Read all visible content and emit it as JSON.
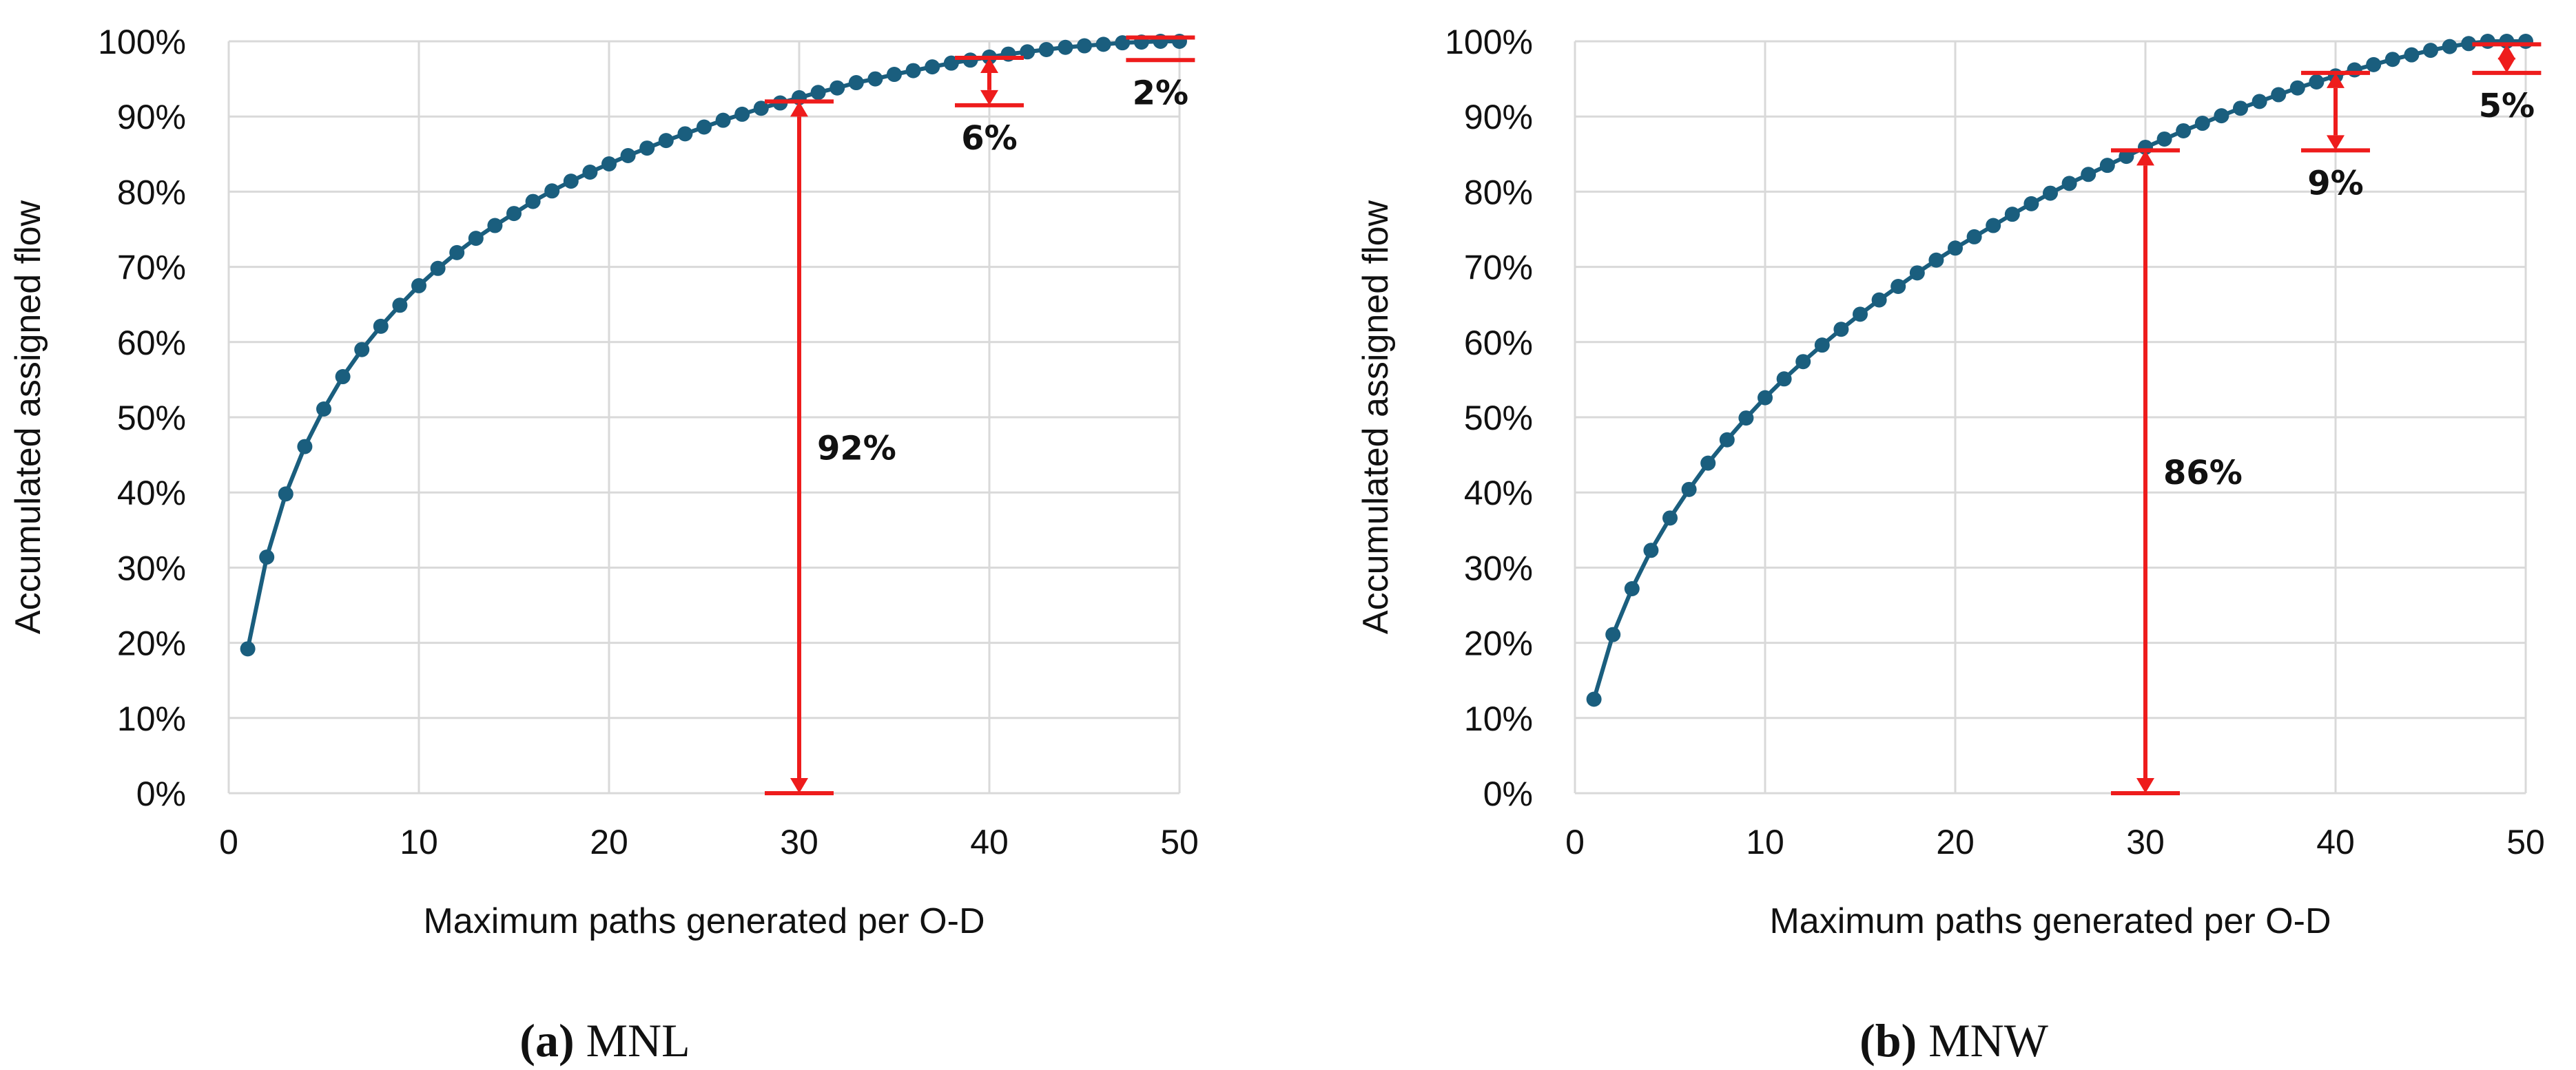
{
  "colors": {
    "series": "#1a5e7e",
    "annotation": "#ee1c1c",
    "grid": "#d9d9d9"
  },
  "chart_data": [
    {
      "id": "a",
      "type": "line",
      "caption_label": "(a)",
      "caption_text": "MNL",
      "xlabel": "Maximum paths generated per O-D",
      "ylabel": "Accumulated assigned flow",
      "xlim": [
        0,
        50
      ],
      "ylim": [
        0,
        100
      ],
      "xticks": [
        0,
        10,
        20,
        30,
        40,
        50
      ],
      "yticks": [
        0,
        10,
        20,
        30,
        40,
        50,
        60,
        70,
        80,
        90,
        100
      ],
      "ytick_suffix": "%",
      "x": [
        1,
        2,
        3,
        4,
        5,
        6,
        7,
        8,
        9,
        10,
        11,
        12,
        13,
        14,
        15,
        16,
        17,
        18,
        19,
        20,
        21,
        22,
        23,
        24,
        25,
        26,
        27,
        28,
        29,
        30,
        31,
        32,
        33,
        34,
        35,
        36,
        37,
        38,
        39,
        40,
        41,
        42,
        43,
        44,
        45,
        46,
        47,
        48,
        49,
        50
      ],
      "y": [
        19.2,
        31.4,
        39.8,
        46.1,
        51.1,
        55.4,
        59.0,
        62.1,
        64.9,
        67.5,
        69.8,
        71.9,
        73.8,
        75.5,
        77.1,
        78.7,
        80.1,
        81.4,
        82.6,
        83.7,
        84.8,
        85.8,
        86.8,
        87.7,
        88.6,
        89.5,
        90.3,
        91.1,
        91.8,
        92.5,
        93.2,
        93.8,
        94.5,
        95.0,
        95.6,
        96.1,
        96.6,
        97.1,
        97.5,
        97.9,
        98.3,
        98.6,
        98.9,
        99.2,
        99.4,
        99.6,
        99.8,
        99.9,
        100.0,
        100.0
      ],
      "annotations": [
        {
          "x": 30,
          "from": 0,
          "to": 92,
          "label": "92%",
          "label_pos": "right"
        },
        {
          "x": 40,
          "from": 91.5,
          "to": 97.8,
          "label": "6%",
          "label_pos": "below"
        },
        {
          "x": 49,
          "from": 97.5,
          "to": 100.5,
          "label": "2%",
          "label_pos": "below",
          "arrow": false
        }
      ]
    },
    {
      "id": "b",
      "type": "line",
      "caption_label": "(b)",
      "caption_text": "MNW",
      "xlabel": "Maximum paths generated per O-D",
      "ylabel": "Accumulated assigned flow",
      "xlim": [
        0,
        50
      ],
      "ylim": [
        0,
        100
      ],
      "xticks": [
        0,
        10,
        20,
        30,
        40,
        50
      ],
      "yticks": [
        0,
        10,
        20,
        30,
        40,
        50,
        60,
        70,
        80,
        90,
        100
      ],
      "ytick_suffix": "%",
      "x": [
        1,
        2,
        3,
        4,
        5,
        6,
        7,
        8,
        9,
        10,
        11,
        12,
        13,
        14,
        15,
        16,
        17,
        18,
        19,
        20,
        21,
        22,
        23,
        24,
        25,
        26,
        27,
        28,
        29,
        30,
        31,
        32,
        33,
        34,
        35,
        36,
        37,
        38,
        39,
        40,
        41,
        42,
        43,
        44,
        45,
        46,
        47,
        48,
        49,
        50
      ],
      "y": [
        12.5,
        21.1,
        27.2,
        32.3,
        36.6,
        40.4,
        43.9,
        47.0,
        49.9,
        52.6,
        55.1,
        57.4,
        59.6,
        61.7,
        63.7,
        65.6,
        67.4,
        69.2,
        70.9,
        72.5,
        74.0,
        75.5,
        77.0,
        78.4,
        79.8,
        81.1,
        82.3,
        83.5,
        84.7,
        85.9,
        87.0,
        88.1,
        89.1,
        90.1,
        91.1,
        92.0,
        92.9,
        93.8,
        94.6,
        95.4,
        96.2,
        96.9,
        97.6,
        98.2,
        98.8,
        99.3,
        99.7,
        100.0,
        100.0,
        100.0
      ],
      "annotations": [
        {
          "x": 30,
          "from": 0,
          "to": 85.5,
          "label": "86%",
          "label_pos": "right"
        },
        {
          "x": 40,
          "from": 85.5,
          "to": 95.8,
          "label": "9%",
          "label_pos": "below"
        },
        {
          "x": 49,
          "from": 95.8,
          "to": 99.6,
          "label": "5%",
          "label_pos": "below"
        }
      ]
    }
  ]
}
